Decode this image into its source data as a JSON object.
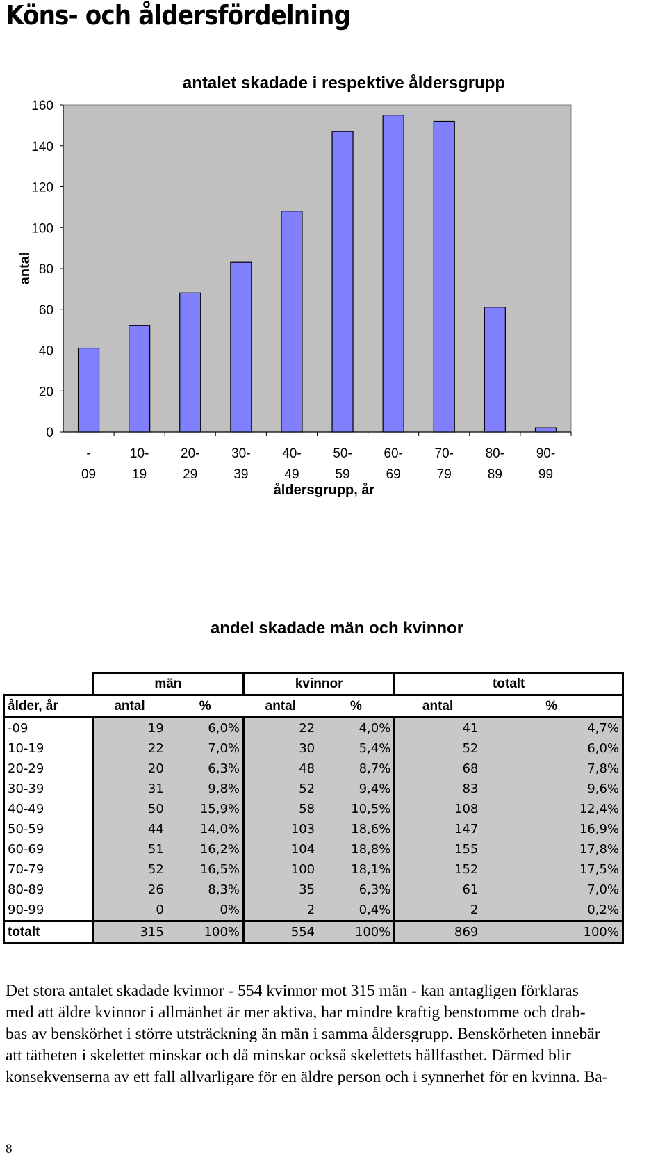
{
  "page": {
    "heading": "Köns- och åldersfördelning",
    "page_number": "8"
  },
  "chart_data": {
    "type": "bar",
    "title": "antalet skadade i respektive åldersgrupp",
    "xlabel": "åldersgrupp, år",
    "ylabel": "antal",
    "ylim": [
      0,
      160
    ],
    "yticks": [
      "0",
      "20",
      "40",
      "60",
      "80",
      "100",
      "120",
      "140",
      "160"
    ],
    "categories": [
      [
        "-",
        "09"
      ],
      [
        "10-",
        "19"
      ],
      [
        "20-",
        "29"
      ],
      [
        "30-",
        "39"
      ],
      [
        "40-",
        "49"
      ],
      [
        "50-",
        "59"
      ],
      [
        "60-",
        "69"
      ],
      [
        "70-",
        "79"
      ],
      [
        "80-",
        "89"
      ],
      [
        "90-",
        "99"
      ]
    ],
    "values": [
      41,
      52,
      68,
      83,
      108,
      147,
      155,
      152,
      61,
      2
    ],
    "bar_color": "#8080ff",
    "plot_background": "#c0c0c0",
    "grid": false,
    "legend": "none"
  },
  "table": {
    "title": "andel skadade män och kvinnor",
    "group_headers": [
      "män",
      "kvinnor",
      "totalt"
    ],
    "column_headers": [
      "ålder, år",
      "antal",
      "%",
      "antal",
      "%",
      "antal",
      "%"
    ],
    "rows": [
      [
        "-09",
        "19",
        "6,0%",
        "22",
        "4,0%",
        "41",
        "4,7%"
      ],
      [
        "10-19",
        "22",
        "7,0%",
        "30",
        "5,4%",
        "52",
        "6,0%"
      ],
      [
        "20-29",
        "20",
        "6,3%",
        "48",
        "8,7%",
        "68",
        "7,8%"
      ],
      [
        "30-39",
        "31",
        "9,8%",
        "52",
        "9,4%",
        "83",
        "9,6%"
      ],
      [
        "40-49",
        "50",
        "15,9%",
        "58",
        "10,5%",
        "108",
        "12,4%"
      ],
      [
        "50-59",
        "44",
        "14,0%",
        "103",
        "18,6%",
        "147",
        "16,9%"
      ],
      [
        "60-69",
        "51",
        "16,2%",
        "104",
        "18,8%",
        "155",
        "17,8%"
      ],
      [
        "70-79",
        "52",
        "16,5%",
        "100",
        "18,1%",
        "152",
        "17,5%"
      ],
      [
        "80-89",
        "26",
        "8,3%",
        "35",
        "6,3%",
        "61",
        "7,0%"
      ],
      [
        "90-99",
        "0",
        "0%",
        "2",
        "0,4%",
        "2",
        "0,2%"
      ]
    ],
    "total_row": [
      "totalt",
      "315",
      "100%",
      "554",
      "100%",
      "869",
      "100%"
    ]
  },
  "body_text": [
    "Det stora antalet skadade kvinnor - 554 kvinnor mot 315 män - kan antagligen förklaras",
    "med att äldre kvinnor i allmänhet är mer aktiva, har mindre kraftig benstomme och drab-",
    "bas av benskörhet i större utsträckning än män i samma åldersgrupp. Benskörheten innebär",
    "att tätheten i skelettet minskar och då minskar också skelettets hållfasthet. Därmed blir",
    "konsekvenserna av ett fall allvarligare för en äldre person och i synnerhet för en kvinna. Ba-"
  ]
}
